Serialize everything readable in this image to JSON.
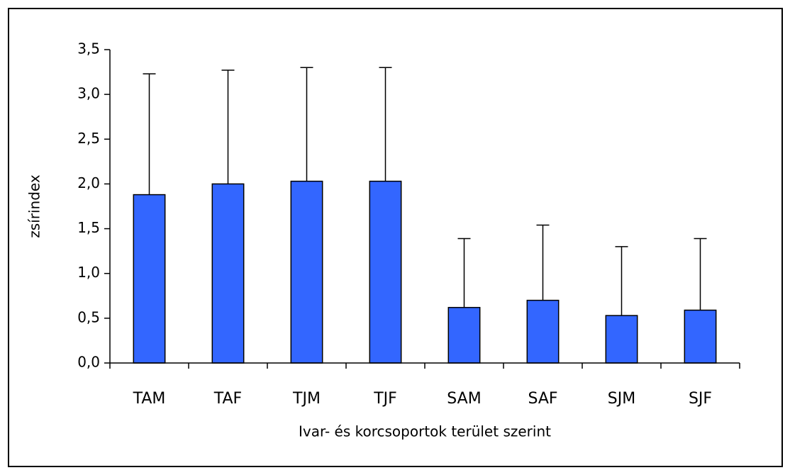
{
  "chart_data": {
    "type": "bar",
    "x_label": "Ivar- és korcsoportok terület szerint",
    "y_label": "zsírindex",
    "categories": [
      "TAM",
      "TAF",
      "TJM",
      "TJF",
      "SAM",
      "SAF",
      "SJM",
      "SJF"
    ],
    "values": [
      1.88,
      2.0,
      2.03,
      2.03,
      0.62,
      0.7,
      0.53,
      0.59
    ],
    "errors": [
      1.35,
      1.27,
      1.27,
      1.27,
      0.77,
      0.84,
      0.77,
      0.8
    ],
    "color": "#3366ff",
    "ylim": [
      0,
      3.5
    ],
    "yticks": [
      {
        "value": 0,
        "label": "0,0"
      },
      {
        "value": 0.5,
        "label": "0,5"
      },
      {
        "value": 1,
        "label": "1,0"
      },
      {
        "value": 1.5,
        "label": "1,5"
      },
      {
        "value": 2,
        "label": "2,0"
      },
      {
        "value": 2.5,
        "label": "2,5"
      },
      {
        "value": 3,
        "label": "3,0"
      },
      {
        "value": 3.5,
        "label": "3,5"
      }
    ],
    "grid": false
  }
}
